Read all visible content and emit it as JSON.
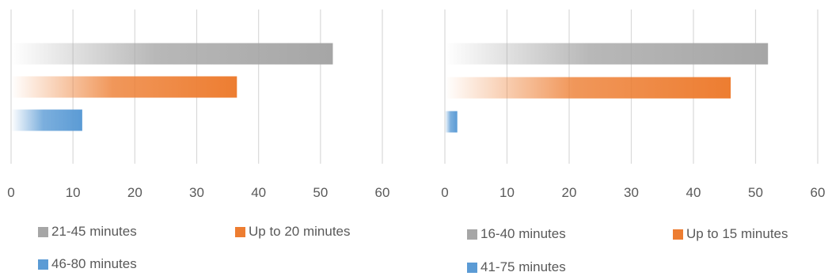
{
  "chart_data": [
    {
      "type": "bar",
      "orientation": "horizontal",
      "xlim": [
        0,
        60
      ],
      "x_ticks": [
        "0",
        "10",
        "20",
        "30",
        "40",
        "50",
        "60"
      ],
      "grid": true,
      "legend_position": "bottom",
      "series": [
        {
          "name": "21-45 minutes",
          "value": 52,
          "color": "#a6a6a6"
        },
        {
          "name": "Up to 20 minutes",
          "value": 36.5,
          "color": "#ed7d31"
        },
        {
          "name": "46-80 minutes",
          "value": 11.5,
          "color": "#5b9bd5"
        }
      ]
    },
    {
      "type": "bar",
      "orientation": "horizontal",
      "xlim": [
        0,
        60
      ],
      "x_ticks": [
        "0",
        "10",
        "20",
        "30",
        "40",
        "50",
        "60"
      ],
      "grid": true,
      "legend_position": "bottom",
      "series": [
        {
          "name": "16-40 minutes",
          "value": 52,
          "color": "#a6a6a6"
        },
        {
          "name": "Up to 15 minutes",
          "value": 46,
          "color": "#ed7d31"
        },
        {
          "name": "41-75 minutes",
          "value": 2,
          "color": "#5b9bd5"
        }
      ]
    }
  ]
}
